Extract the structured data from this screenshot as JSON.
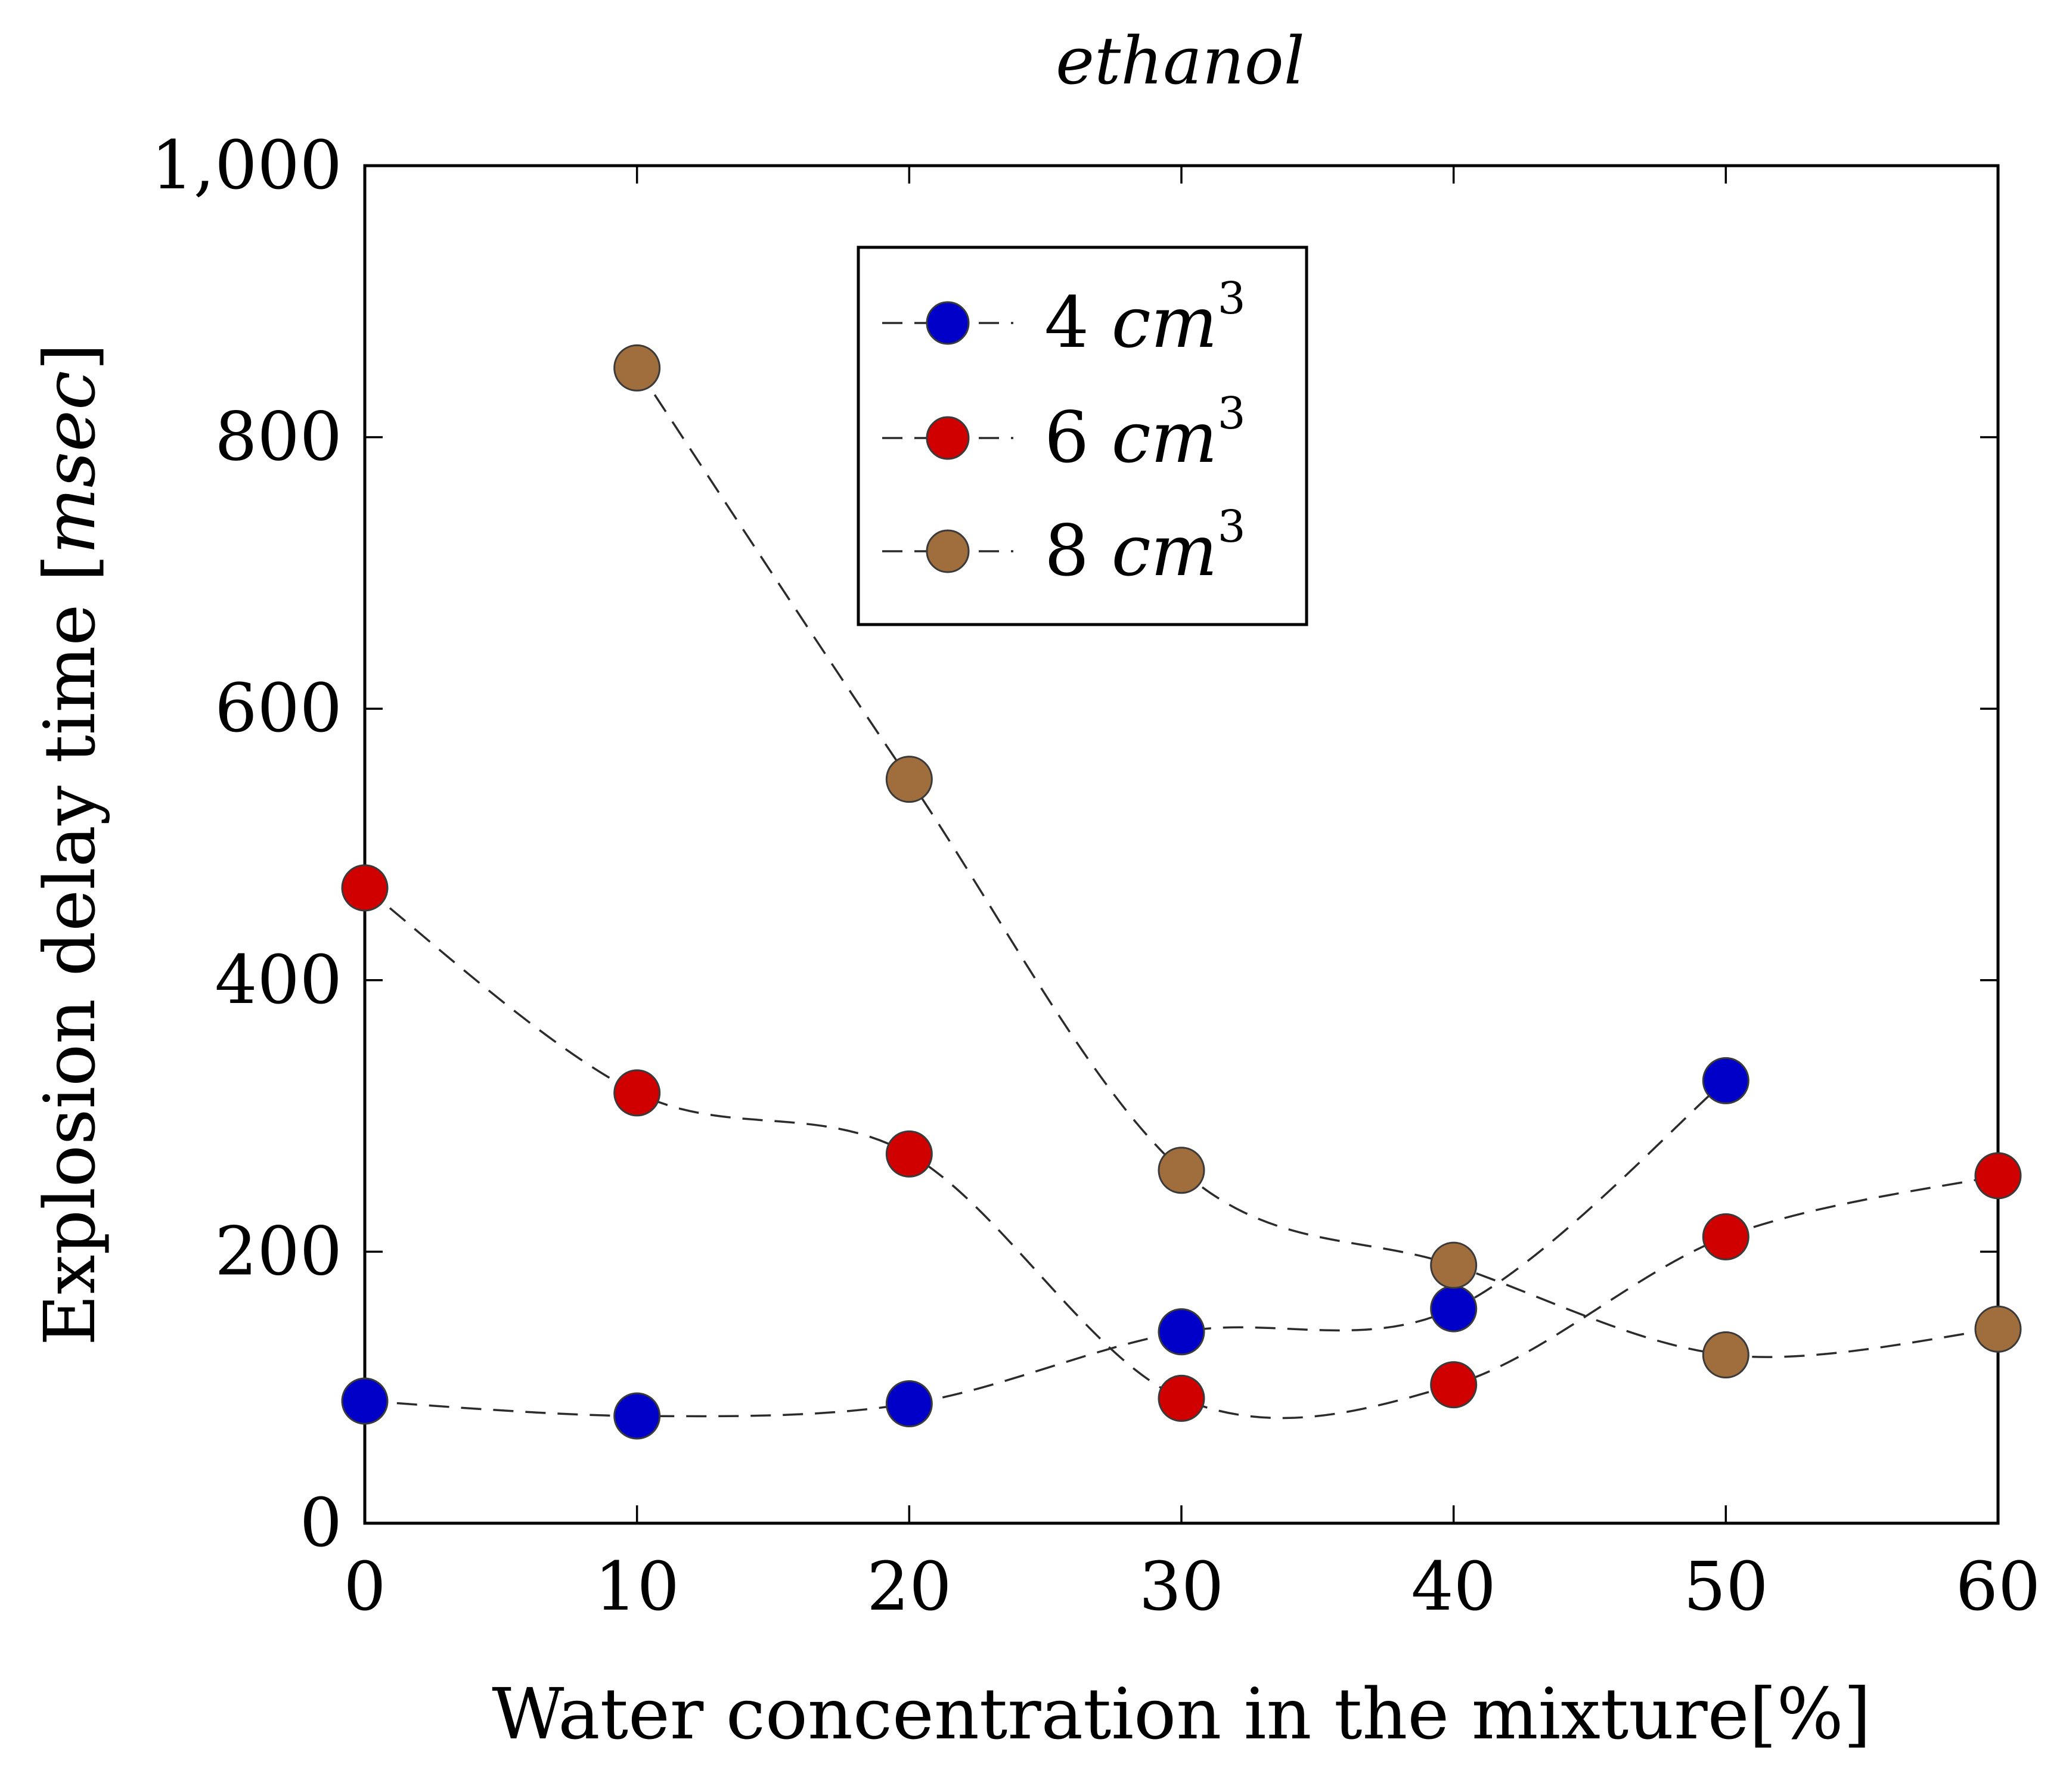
{
  "chart_data": {
    "type": "line",
    "title": "ethanol",
    "xlabel": "Water concentration in the mixture[%]",
    "ylabel_prefix": "Explosion delay time [",
    "ylabel_unit": "msec",
    "ylabel_suffix": "]",
    "xlim": [
      0,
      60
    ],
    "ylim": [
      0,
      1000
    ],
    "xticks": [
      0,
      10,
      20,
      30,
      40,
      50,
      60
    ],
    "yticks": [
      0,
      200,
      400,
      600,
      800,
      1000
    ],
    "ytick_labels": [
      "0",
      "200",
      "400",
      "600",
      "800",
      "1,000"
    ],
    "legend_position": "top-center",
    "series": [
      {
        "name": "4",
        "unit": "cm",
        "exponent": "3",
        "color": "#0000c8",
        "x": [
          0,
          10,
          20,
          30,
          40,
          50
        ],
        "y": [
          90,
          79,
          88,
          141,
          158,
          326
        ]
      },
      {
        "name": "6",
        "unit": "cm",
        "exponent": "3",
        "color": "#d00000",
        "x": [
          0,
          10,
          20,
          30,
          40,
          50,
          60
        ],
        "y": [
          468,
          317,
          272,
          92,
          102,
          211,
          256
        ]
      },
      {
        "name": "8",
        "unit": "cm",
        "exponent": "3",
        "color": "#a06d3c",
        "x": [
          10,
          20,
          30,
          40,
          50,
          60
        ],
        "y": [
          851,
          548,
          260,
          190,
          124,
          143
        ]
      }
    ]
  }
}
